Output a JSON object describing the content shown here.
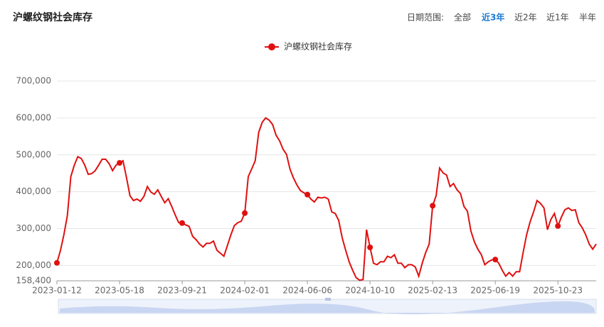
{
  "header": {
    "range_label": "日期范围:",
    "range_options": [
      "全部",
      "近3年",
      "近2年",
      "近1年",
      "半年"
    ],
    "active_option": 1
  },
  "chart_data": {
    "type": "line",
    "title": "沪螺纹钢社会库存",
    "categories": [
      "2023-01-12",
      null,
      null,
      null,
      null,
      null,
      null,
      null,
      null,
      null,
      null,
      null,
      null,
      null,
      null,
      null,
      null,
      null,
      "2023-05-18",
      null,
      null,
      null,
      null,
      null,
      null,
      null,
      null,
      null,
      null,
      null,
      null,
      null,
      null,
      null,
      null,
      null,
      "2023-09-21",
      null,
      null,
      null,
      null,
      null,
      null,
      null,
      null,
      null,
      null,
      null,
      null,
      null,
      null,
      null,
      null,
      null,
      "2024-02-01",
      null,
      null,
      null,
      null,
      null,
      null,
      null,
      null,
      null,
      null,
      null,
      null,
      null,
      null,
      null,
      null,
      null,
      "2024-06-06",
      null,
      null,
      null,
      null,
      null,
      null,
      null,
      null,
      null,
      null,
      null,
      null,
      null,
      null,
      null,
      null,
      null,
      "2024-10-10",
      null,
      null,
      null,
      null,
      null,
      null,
      null,
      null,
      null,
      null,
      null,
      null,
      null,
      null,
      null,
      null,
      null,
      "2025-02-13",
      null,
      null,
      null,
      null,
      null,
      null,
      null,
      null,
      null,
      null,
      null,
      null,
      null,
      null,
      null,
      null,
      null,
      "2025-06-19",
      null,
      null,
      null,
      null,
      null,
      null,
      null,
      null,
      null,
      null,
      null,
      null,
      null,
      null,
      null,
      null,
      null,
      "2025-10-23",
      null,
      null,
      null,
      null,
      null,
      null,
      null,
      null,
      null,
      null,
      null
    ],
    "series": [
      {
        "name": "沪螺纹钢社会库存",
        "color": "#e01010",
        "values": [
          207000,
          240000,
          283000,
          335000,
          441000,
          472000,
          495000,
          490000,
          472000,
          447000,
          449000,
          457000,
          472000,
          488000,
          488000,
          476000,
          457000,
          472000,
          478000,
          484000,
          438000,
          389000,
          376000,
          380000,
          374000,
          387000,
          414000,
          399000,
          393000,
          405000,
          387000,
          370000,
          381000,
          360000,
          337000,
          316000,
          315000,
          310000,
          306000,
          279000,
          270000,
          258000,
          250000,
          260000,
          260000,
          266000,
          241000,
          233000,
          225000,
          254000,
          283000,
          308000,
          316000,
          320000,
          342000,
          441000,
          462000,
          484000,
          561000,
          588000,
          600000,
          594000,
          582000,
          553000,
          538000,
          515000,
          501000,
          461000,
          437000,
          418000,
          403000,
          397000,
          392000,
          380000,
          372000,
          385000,
          383000,
          385000,
          380000,
          345000,
          341000,
          322000,
          275000,
          241000,
          210000,
          187000,
          167000,
          160000,
          162000,
          297000,
          249000,
          206000,
          202000,
          210000,
          210000,
          225000,
          221000,
          229000,
          206000,
          206000,
          194000,
          202000,
          202000,
          196000,
          171000,
          206000,
          235000,
          258000,
          362000,
          389000,
          464000,
          451000,
          445000,
          414000,
          422000,
          405000,
          395000,
          360000,
          347000,
          293000,
          264000,
          244000,
          229000,
          202000,
          210000,
          215000,
          216000,
          206000,
          187000,
          171000,
          181000,
          171000,
          183000,
          183000,
          235000,
          283000,
          318000,
          345000,
          376000,
          368000,
          356000,
          297000,
          325000,
          341000,
          307000,
          331000,
          351000,
          356000,
          349000,
          351000,
          316000,
          302000,
          283000,
          258000,
          244000,
          258000
        ]
      }
    ],
    "ylim": [
      158400,
      700000
    ],
    "yticks": [
      {
        "value": 158400,
        "label": "158,400"
      },
      {
        "value": 200000,
        "label": "200,000"
      },
      {
        "value": 300000,
        "label": "300,000"
      },
      {
        "value": 400000,
        "label": "400,000"
      },
      {
        "value": 500000,
        "label": "500,000"
      },
      {
        "value": 600000,
        "label": "600,000"
      },
      {
        "value": 700000,
        "label": "700,000"
      }
    ],
    "grid": true
  }
}
